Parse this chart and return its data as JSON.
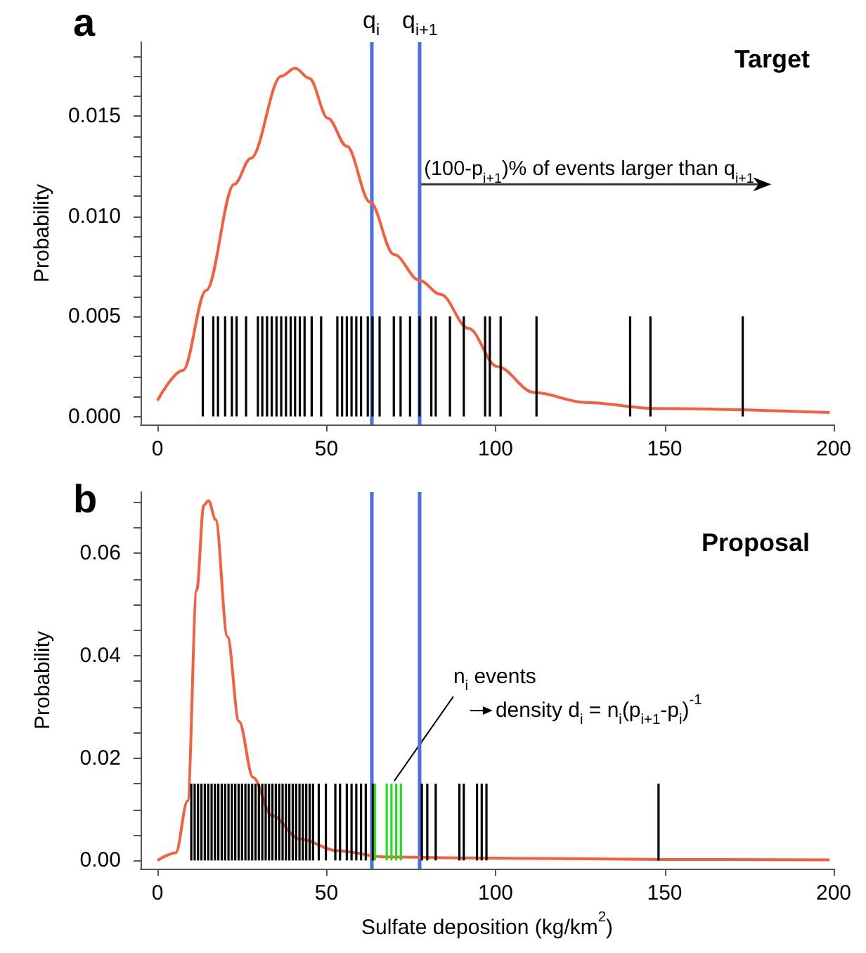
{
  "chart_data": [
    {
      "type": "line",
      "title": "Target",
      "ylabel": "Probability",
      "xlim": [
        -5,
        200
      ],
      "xticks": [
        0,
        50,
        100,
        150,
        200
      ],
      "ylim": [
        -0.0004,
        0.0187
      ],
      "marker": "none",
      "yticks": [
        {
          "value": 0,
          "label": "0.000"
        },
        {
          "value": 0.001,
          "label": null
        },
        {
          "value": 0.002,
          "label": null
        },
        {
          "value": 0.003,
          "label": null
        },
        {
          "value": 0.004,
          "label": null
        },
        {
          "value": 0.005,
          "label": "0.005"
        },
        {
          "value": 0.006,
          "label": null
        },
        {
          "value": 0.007,
          "label": null
        },
        {
          "value": 0.008,
          "label": null
        },
        {
          "value": 0.009,
          "label": null
        },
        {
          "value": 0.01,
          "label": "0.010"
        },
        {
          "value": 0.011,
          "label": null
        },
        {
          "value": 0.012,
          "label": null
        },
        {
          "value": 0.013,
          "label": null
        },
        {
          "value": 0.014,
          "label": null
        },
        {
          "value": 0.015,
          "label": "0.015"
        },
        {
          "value": 0.016,
          "label": null
        },
        {
          "value": 0.017,
          "label": null
        },
        {
          "value": 0.018,
          "label": null
        }
      ],
      "series": [
        {
          "type": "bar",
          "color": "#000000",
          "x": [
            13.4,
            16.5,
            17.9,
            20.0,
            22.0,
            23.4,
            26.2,
            29.7,
            31.0,
            32.4,
            33.8,
            35.2,
            36.6,
            38.0,
            39.4,
            40.7,
            42.1,
            43.5,
            45.6,
            48.4,
            53.2,
            54.6,
            56.0,
            57.4,
            58.8,
            60.2,
            62.2,
            63.6,
            65.7,
            69.9,
            71.9,
            74.7,
            77.5,
            81.0,
            82.3,
            86.5,
            90.6,
            96.9,
            98.3,
            101.5,
            112.1,
            139.8,
            145.8,
            173.1
          ],
          "values": [
            0.005,
            0.005,
            0.005,
            0.005,
            0.005,
            0.005,
            0.005,
            0.005,
            0.005,
            0.005,
            0.005,
            0.005,
            0.005,
            0.005,
            0.005,
            0.005,
            0.005,
            0.005,
            0.005,
            0.005,
            0.005,
            0.005,
            0.005,
            0.005,
            0.005,
            0.005,
            0.005,
            0.005,
            0.005,
            0.005,
            0.005,
            0.005,
            0.005,
            0.005,
            0.005,
            0.005,
            0.005,
            0.005,
            0.005,
            0.005,
            0.005,
            0.005,
            0.005,
            0.005
          ]
        },
        {
          "color": "#f4603f",
          "x": [
            0,
            7.5,
            14.4,
            22.7,
            27.6,
            36.6,
            40.7,
            44.9,
            50.4,
            56,
            62.9,
            69.9,
            77.5,
            83.7,
            92,
            100.4,
            111.4,
            126.7,
            147.5,
            198.8
          ],
          "values": [
            0.0008,
            0.0023,
            0.0063,
            0.0116,
            0.0129,
            0.017,
            0.0174,
            0.0169,
            0.0149,
            0.0135,
            0.0107,
            0.0081,
            0.0068,
            0.0061,
            0.0044,
            0.0025,
            0.0012,
            0.0007,
            0.0004,
            0.0002
          ]
        }
      ],
      "ref_lines": [
        {
          "axis": "x",
          "value": 63.2,
          "label": "q$_{i}$",
          "color": "#4a6fe3"
        },
        {
          "axis": "x",
          "value": 77.6,
          "label": "q$_{i+1}$",
          "color": "#4a6fe3"
        }
      ],
      "annotations": [
        "a",
        {
          "text": "(100-p$_{i+1}$)% of events larger than q$_{i+1}$",
          "x": 77.6,
          "y": 0.0116
        }
      ]
    },
    {
      "type": "line",
      "title": "Proposal",
      "ylabel": "Probability",
      "xlabel": "Sulfate deposition (kg/km$^{2}$)",
      "xlim": [
        -5,
        200
      ],
      "xticks": [
        0,
        50,
        100,
        150,
        200
      ],
      "ylim": [
        -0.0016,
        0.072
      ],
      "marker": "none",
      "yticks": [
        {
          "value": 0,
          "label": "0.00"
        },
        {
          "value": 0.005,
          "label": null
        },
        {
          "value": 0.01,
          "label": null
        },
        {
          "value": 0.015,
          "label": null
        },
        {
          "value": 0.02,
          "label": "0.02"
        },
        {
          "value": 0.025,
          "label": null
        },
        {
          "value": 0.03,
          "label": null
        },
        {
          "value": 0.035,
          "label": null
        },
        {
          "value": 0.04,
          "label": "0.04"
        },
        {
          "value": 0.045,
          "label": null
        },
        {
          "value": 0.05,
          "label": null
        },
        {
          "value": 0.055,
          "label": null
        },
        {
          "value": 0.06,
          "label": "0.06"
        },
        {
          "value": 0.065,
          "label": null
        },
        {
          "value": 0.07,
          "label": null
        }
      ],
      "series": [
        {
          "type": "bar",
          "color": "#000000",
          "x": [
            10,
            11,
            12,
            13,
            14,
            15,
            16,
            17,
            18,
            19,
            20,
            21,
            22,
            23,
            24,
            25,
            26,
            27,
            28,
            29,
            30,
            31,
            32,
            33,
            34,
            35,
            36,
            37,
            38,
            39,
            40,
            41,
            42,
            43,
            44,
            45,
            46,
            47.7,
            49.8,
            52.6,
            54,
            56,
            57.4,
            58.8,
            60.2,
            61.6,
            63.7,
            78.2,
            79.8,
            82.3,
            89.3,
            90.6,
            94.5,
            95.9,
            97.3,
            148.2
          ],
          "values": [
            0.015,
            0.015,
            0.015,
            0.015,
            0.015,
            0.015,
            0.015,
            0.015,
            0.015,
            0.015,
            0.015,
            0.015,
            0.015,
            0.015,
            0.015,
            0.015,
            0.015,
            0.015,
            0.015,
            0.015,
            0.015,
            0.015,
            0.015,
            0.015,
            0.015,
            0.015,
            0.015,
            0.015,
            0.015,
            0.015,
            0.015,
            0.015,
            0.015,
            0.015,
            0.015,
            0.015,
            0.015,
            0.015,
            0.015,
            0.015,
            0.015,
            0.015,
            0.015,
            0.015,
            0.015,
            0.015,
            0.015,
            0.015,
            0.015,
            0.015,
            0.015,
            0.015,
            0.015,
            0.015,
            0.015,
            0.015
          ]
        },
        {
          "type": "bar",
          "color": "#22dd22",
          "x": [
            64.3,
            67.8,
            69.2,
            70.6,
            72.0
          ],
          "values": [
            0.015,
            0.015,
            0.015,
            0.015,
            0.015
          ]
        },
        {
          "color": "#f4603f",
          "x": [
            0,
            5.4,
            8.9,
            11.6,
            13.7,
            15.1,
            17.2,
            20.7,
            24.1,
            28.3,
            33.8,
            42.1,
            53.2,
            67.1,
            92,
            150,
            198.8
          ],
          "values": [
            0,
            0.0015,
            0.0116,
            0.0528,
            0.0694,
            0.0703,
            0.0666,
            0.0437,
            0.0272,
            0.0162,
            0.0088,
            0.0042,
            0.0019,
            0.0007,
            0.0005,
            0.0002,
            0.0001
          ]
        }
      ],
      "ref_lines": [
        {
          "axis": "x",
          "value": 63.2,
          "color": "#4a6fe3"
        },
        {
          "axis": "x",
          "value": 77.6,
          "color": "#4a6fe3"
        }
      ],
      "annotations": [
        "b",
        {
          "text": "n$_{i}$ events",
          "x": 69.2,
          "y": 0.015
        },
        "density d$_{i}$ = n$_{i}$(p$_{i+1}$-p$_{i}$)$^{-1}$"
      ]
    }
  ]
}
